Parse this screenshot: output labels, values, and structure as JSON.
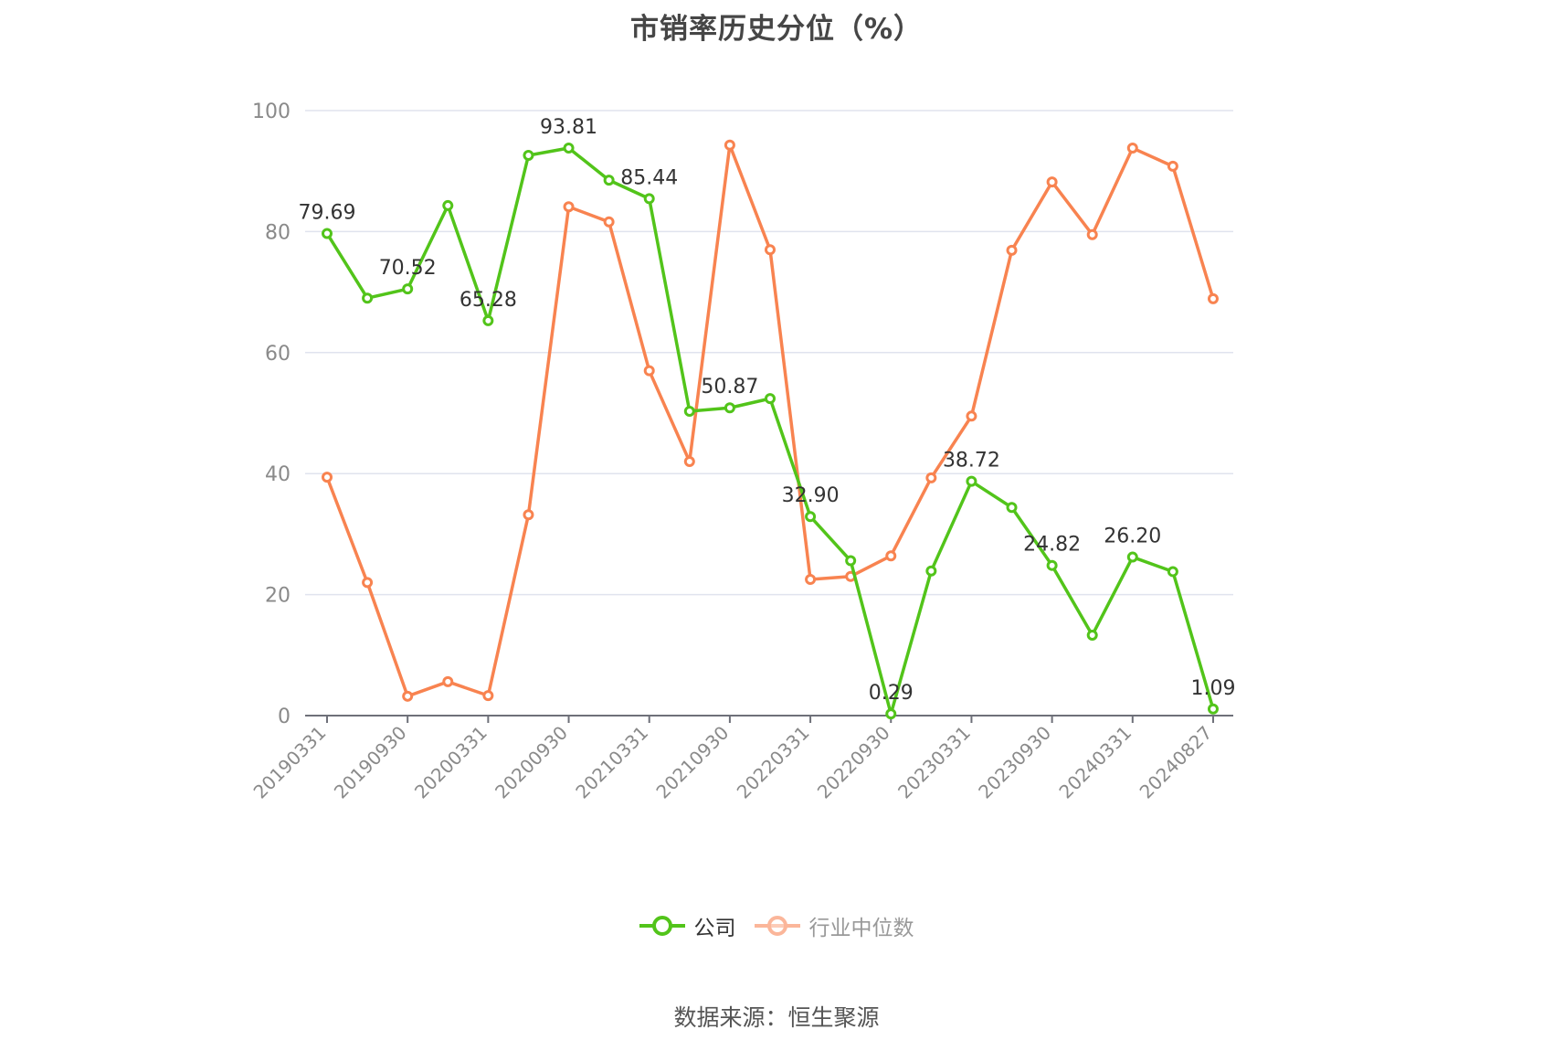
{
  "title": "市销率历史分位（%）",
  "source": "数据来源：恒生聚源",
  "legend": [
    {
      "label": "公司",
      "color": "#52c41a",
      "state": "active"
    },
    {
      "label": "行业中位数",
      "color": "#fbb69a",
      "state": "inactive"
    }
  ],
  "colors": {
    "company": "#52c41a",
    "industry": "#f88350",
    "grid": "#e0e3ee",
    "axis": "#6e7079",
    "tick_label": "#8a8a8a"
  },
  "chart_data": {
    "type": "line",
    "title": "市销率历史分位（%）",
    "xlabel": "",
    "ylabel": "",
    "ylim": [
      0,
      100
    ],
    "yticks": [
      0,
      20,
      40,
      60,
      80,
      100
    ],
    "grid": true,
    "legend_position": "bottom",
    "x": [
      "20190331",
      "20190630",
      "20190930",
      "20191231",
      "20200331",
      "20200630",
      "20200930",
      "20201231",
      "20210331",
      "20210630",
      "20210930",
      "20211231",
      "20220331",
      "20220630",
      "20220930",
      "20221231",
      "20230331",
      "20230630",
      "20230930",
      "20231231",
      "20240331",
      "20240630",
      "20240827"
    ],
    "xtick_labels": [
      "20190331",
      "20190930",
      "20200331",
      "20200930",
      "20210331",
      "20210930",
      "20220331",
      "20220930",
      "20230331",
      "20230930",
      "20240331",
      "20240827"
    ],
    "series": [
      {
        "name": "公司",
        "values": [
          79.69,
          69.0,
          70.52,
          84.3,
          65.28,
          92.6,
          93.81,
          88.5,
          85.44,
          50.3,
          50.87,
          52.4,
          32.9,
          25.6,
          0.29,
          23.9,
          38.72,
          34.4,
          24.82,
          13.3,
          26.2,
          23.8,
          1.09
        ],
        "labels": {
          "0": "79.69",
          "2": "70.52",
          "4": "65.28",
          "6": "93.81",
          "8": "85.44",
          "10": "50.87",
          "12": "32.90",
          "14": "0.29",
          "16": "38.72",
          "18": "24.82",
          "20": "26.20",
          "22": "1.09"
        }
      },
      {
        "name": "行业中位数",
        "values": [
          39.4,
          22.0,
          3.2,
          5.6,
          3.3,
          33.2,
          84.1,
          81.6,
          57.0,
          42.0,
          94.3,
          77.0,
          22.5,
          23.0,
          26.4,
          39.3,
          49.5,
          76.9,
          88.2,
          79.5,
          93.8,
          90.8,
          68.9
        ]
      }
    ]
  }
}
